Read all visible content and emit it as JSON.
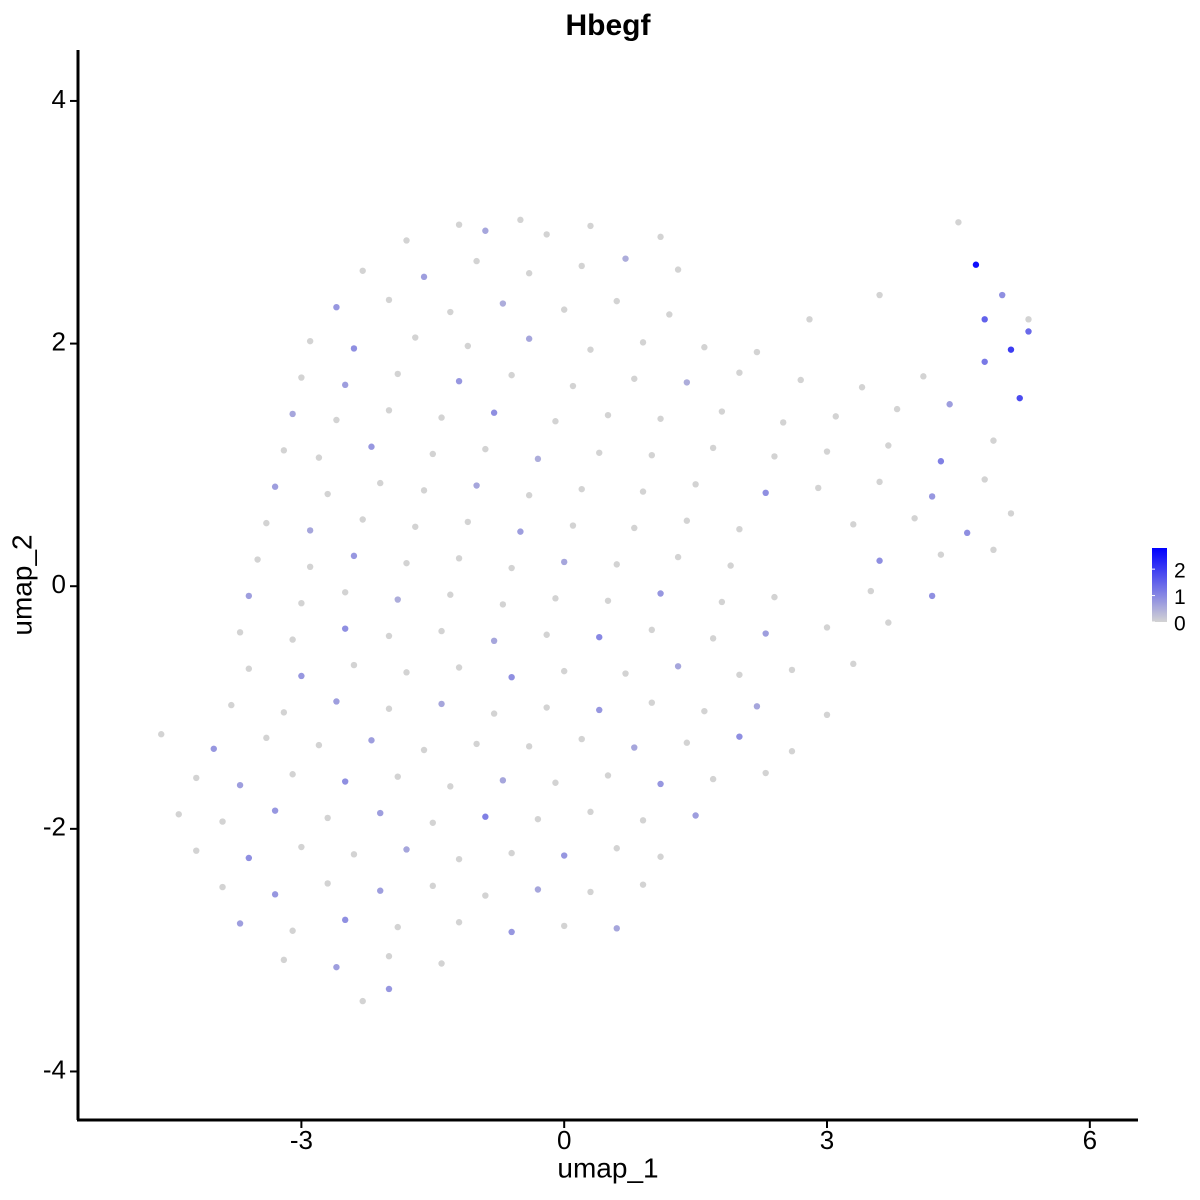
{
  "chart_data": {
    "type": "scatter",
    "title": "Hbegf",
    "x_label": "umap_1",
    "y_label": "umap_2",
    "xlim": [
      -5.55,
      6.55
    ],
    "ylim": [
      -4.4,
      4.42
    ],
    "xticks": [
      -3,
      0,
      3,
      6
    ],
    "yticks": [
      -4,
      -2,
      0,
      2,
      4
    ],
    "color_low": "#d3d3d3",
    "color_high": "#0000ff",
    "color_lim": [
      0,
      2.8
    ],
    "color_ticks": [
      0,
      1,
      2
    ],
    "x": [
      -1.8,
      -1.2,
      -0.9,
      -0.5,
      -0.2,
      0.3,
      1.1,
      -2.3,
      -1.6,
      -1.0,
      -0.4,
      0.2,
      0.7,
      1.3,
      -2.6,
      -2.0,
      -1.3,
      -0.7,
      0.0,
      0.6,
      1.2,
      -2.9,
      -2.4,
      -1.7,
      -1.1,
      -0.4,
      0.3,
      0.9,
      1.6,
      2.2,
      -3.0,
      -2.5,
      -1.9,
      -1.2,
      -0.6,
      0.1,
      0.8,
      1.4,
      2.0,
      2.7,
      3.4,
      4.1,
      4.8,
      -3.1,
      -2.6,
      -2.0,
      -1.4,
      -0.8,
      -0.1,
      0.5,
      1.1,
      1.8,
      2.5,
      3.1,
      3.8,
      4.4,
      5.2,
      -3.2,
      -2.8,
      -2.2,
      -1.5,
      -0.9,
      -0.3,
      0.4,
      1.0,
      1.7,
      2.4,
      3.0,
      3.7,
      4.3,
      4.9,
      -3.3,
      -2.7,
      -2.1,
      -1.6,
      -1.0,
      -0.4,
      0.2,
      0.9,
      1.5,
      2.3,
      2.9,
      3.6,
      4.2,
      4.8,
      -3.4,
      -2.9,
      -2.3,
      -1.7,
      -1.1,
      -0.5,
      0.1,
      0.8,
      1.4,
      2.0,
      3.3,
      4.0,
      4.6,
      5.1,
      -3.5,
      -2.9,
      -2.4,
      -1.8,
      -1.2,
      -0.6,
      0.0,
      0.6,
      1.3,
      1.9,
      3.6,
      4.3,
      4.9,
      -3.6,
      -3.0,
      -2.5,
      -1.9,
      -1.3,
      -0.7,
      -0.1,
      0.5,
      1.1,
      1.8,
      2.4,
      3.5,
      4.2,
      -3.7,
      -3.1,
      -2.5,
      -2.0,
      -1.4,
      -0.8,
      -0.2,
      0.4,
      1.0,
      1.7,
      2.3,
      3.0,
      3.7,
      -3.6,
      -3.0,
      -2.4,
      -1.8,
      -1.2,
      -0.6,
      0.0,
      0.7,
      1.3,
      2.0,
      2.6,
      3.3,
      -3.8,
      -3.2,
      -2.6,
      -2.0,
      -1.4,
      -0.8,
      -0.2,
      0.4,
      1.0,
      1.6,
      2.2,
      3.0,
      -4.6,
      -4.0,
      -3.4,
      -2.8,
      -2.2,
      -1.6,
      -1.0,
      -0.4,
      0.2,
      0.8,
      1.4,
      2.0,
      2.6,
      -4.2,
      -3.7,
      -3.1,
      -2.5,
      -1.9,
      -1.3,
      -0.7,
      -0.1,
      0.5,
      1.1,
      1.7,
      2.3,
      -4.4,
      -3.9,
      -3.3,
      -2.7,
      -2.1,
      -1.5,
      -0.9,
      -0.3,
      0.3,
      0.9,
      1.5,
      -4.2,
      -3.6,
      -3.0,
      -2.4,
      -1.8,
      -1.2,
      -0.6,
      0.0,
      0.6,
      1.1,
      -3.9,
      -3.3,
      -2.7,
      -2.1,
      -1.5,
      -0.9,
      -0.3,
      0.3,
      0.9,
      -3.7,
      -3.1,
      -2.5,
      -1.9,
      -1.2,
      -0.6,
      0.0,
      0.6,
      -3.2,
      -2.6,
      -2.0,
      -1.4,
      -2.3,
      -2.0,
      4.5,
      4.7,
      5.0,
      5.3,
      5.1,
      4.8,
      3.6,
      2.8,
      5.3
    ],
    "y": [
      2.85,
      2.98,
      2.93,
      3.02,
      2.9,
      2.97,
      2.88,
      2.6,
      2.55,
      2.68,
      2.58,
      2.64,
      2.7,
      2.61,
      2.3,
      2.36,
      2.26,
      2.33,
      2.28,
      2.35,
      2.24,
      2.02,
      1.96,
      2.05,
      1.98,
      2.04,
      1.95,
      2.01,
      1.97,
      1.93,
      1.72,
      1.66,
      1.75,
      1.69,
      1.74,
      1.65,
      1.71,
      1.68,
      1.76,
      1.7,
      1.64,
      1.73,
      1.85,
      1.42,
      1.37,
      1.45,
      1.39,
      1.43,
      1.36,
      1.41,
      1.38,
      1.44,
      1.35,
      1.4,
      1.46,
      1.5,
      1.55,
      1.12,
      1.06,
      1.15,
      1.09,
      1.13,
      1.05,
      1.1,
      1.08,
      1.14,
      1.07,
      1.11,
      1.16,
      1.03,
      1.2,
      0.82,
      0.76,
      0.85,
      0.79,
      0.83,
      0.75,
      0.8,
      0.78,
      0.84,
      0.77,
      0.81,
      0.86,
      0.74,
      0.88,
      0.52,
      0.46,
      0.55,
      0.49,
      0.53,
      0.45,
      0.5,
      0.48,
      0.54,
      0.47,
      0.51,
      0.56,
      0.44,
      0.6,
      0.22,
      0.16,
      0.25,
      0.19,
      0.23,
      0.15,
      0.2,
      0.18,
      0.24,
      0.17,
      0.21,
      0.26,
      0.3,
      -0.08,
      -0.14,
      -0.05,
      -0.11,
      -0.07,
      -0.15,
      -0.1,
      -0.12,
      -0.06,
      -0.13,
      -0.09,
      -0.04,
      -0.08,
      -0.38,
      -0.44,
      -0.35,
      -0.41,
      -0.37,
      -0.45,
      -0.4,
      -0.42,
      -0.36,
      -0.43,
      -0.39,
      -0.34,
      -0.3,
      -0.68,
      -0.74,
      -0.65,
      -0.71,
      -0.67,
      -0.75,
      -0.7,
      -0.72,
      -0.66,
      -0.73,
      -0.69,
      -0.64,
      -0.98,
      -1.04,
      -0.95,
      -1.01,
      -0.97,
      -1.05,
      -1.0,
      -1.02,
      -0.96,
      -1.03,
      -0.99,
      -1.06,
      -1.22,
      -1.34,
      -1.25,
      -1.31,
      -1.27,
      -1.35,
      -1.3,
      -1.32,
      -1.26,
      -1.33,
      -1.29,
      -1.24,
      -1.36,
      -1.58,
      -1.64,
      -1.55,
      -1.61,
      -1.57,
      -1.65,
      -1.6,
      -1.62,
      -1.56,
      -1.63,
      -1.59,
      -1.54,
      -1.88,
      -1.94,
      -1.85,
      -1.91,
      -1.87,
      -1.95,
      -1.9,
      -1.92,
      -1.86,
      -1.93,
      -1.89,
      -2.18,
      -2.24,
      -2.15,
      -2.21,
      -2.17,
      -2.25,
      -2.2,
      -2.22,
      -2.16,
      -2.23,
      -2.48,
      -2.54,
      -2.45,
      -2.51,
      -2.47,
      -2.55,
      -2.5,
      -2.52,
      -2.46,
      -2.78,
      -2.84,
      -2.75,
      -2.81,
      -2.77,
      -2.85,
      -2.8,
      -2.82,
      -3.08,
      -3.14,
      -3.05,
      -3.11,
      -3.42,
      -3.32,
      3.0,
      2.65,
      2.4,
      2.2,
      1.95,
      2.2,
      2.4,
      2.2,
      2.1
    ],
    "values": [
      0,
      0,
      0.6,
      0,
      0,
      0,
      0,
      0,
      0.7,
      0,
      0,
      0,
      0.5,
      0,
      0.8,
      0,
      0,
      0.5,
      0,
      0,
      0,
      0,
      0.9,
      0,
      0,
      0.6,
      0,
      0,
      0,
      0,
      0,
      0.7,
      0,
      0.8,
      0,
      0,
      0,
      0.5,
      0,
      0,
      0,
      0,
      1.2,
      0.6,
      0,
      0,
      0,
      0.9,
      0,
      0,
      0,
      0,
      0,
      0,
      0,
      0.7,
      1.8,
      0,
      0,
      0.8,
      0,
      0,
      0.5,
      0,
      0,
      0,
      0,
      0,
      0,
      1.1,
      0,
      0.7,
      0,
      0,
      0,
      0.6,
      0,
      0,
      0,
      0,
      0.9,
      0,
      0,
      0.8,
      0,
      0,
      0.6,
      0,
      0,
      0,
      0.7,
      0,
      0,
      0,
      0,
      0,
      0,
      0.9,
      0,
      0,
      0,
      0.8,
      0,
      0,
      0,
      0.6,
      0,
      0,
      0,
      0.9,
      0,
      0,
      0.7,
      0,
      0,
      0.5,
      0,
      0,
      0,
      0,
      0.8,
      0,
      0,
      0,
      0.9,
      0,
      0,
      0.9,
      0,
      0,
      0.6,
      0,
      1.0,
      0,
      0,
      0.7,
      0,
      0,
      0,
      0.8,
      0,
      0,
      0,
      0.9,
      0,
      0,
      0.6,
      0,
      0,
      0,
      0,
      0,
      0.7,
      0,
      0.6,
      0,
      0,
      0.8,
      0,
      0,
      0.6,
      0,
      0,
      0.8,
      0,
      0,
      0.7,
      0,
      0,
      0,
      0,
      0.6,
      0,
      0.9,
      0,
      0,
      0.7,
      0,
      0.9,
      0,
      0,
      0.6,
      0,
      0,
      0.8,
      0,
      0,
      0,
      0,
      0.8,
      0,
      0.7,
      0,
      1.1,
      0,
      0,
      0,
      0.7,
      0,
      0.9,
      0,
      0,
      0.6,
      0,
      0,
      0.8,
      0,
      0,
      0,
      0.8,
      0,
      0.7,
      0,
      0,
      0.6,
      0,
      0,
      0.7,
      0,
      0.9,
      0,
      0,
      0.8,
      0,
      0.6,
      0,
      0.7,
      0,
      0,
      0,
      0.8,
      0,
      2.6,
      0.9,
      0,
      2.0,
      1.5,
      0,
      0,
      1.4
    ]
  }
}
